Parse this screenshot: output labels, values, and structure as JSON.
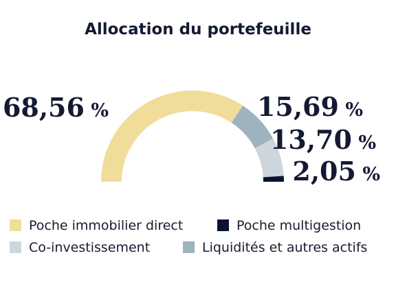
{
  "title": "Allocation du portefeuille",
  "chart_data": {
    "type": "donut-half",
    "title": "Allocation du portefeuille",
    "series": [
      {
        "name": "Poche immobilier direct",
        "value": 68.56,
        "label": "68,56",
        "color": "#f1dd9a"
      },
      {
        "name": "Liquidités et autres actifs",
        "value": 15.69,
        "label": "15,69",
        "color": "#9db3be"
      },
      {
        "name": "Co-investissement",
        "value": 13.7,
        "label": "13,70",
        "color": "#cdd6dc"
      },
      {
        "name": "Poche multigestion",
        "value": 2.05,
        "label": "2,05",
        "color": "#0c1331"
      }
    ],
    "unit": "%",
    "legend": {
      "placement": "bottom",
      "order": [
        "Poche immobilier direct",
        "Poche multigestion",
        "Co-investissement",
        "Liquidités et autres actifs"
      ]
    }
  }
}
